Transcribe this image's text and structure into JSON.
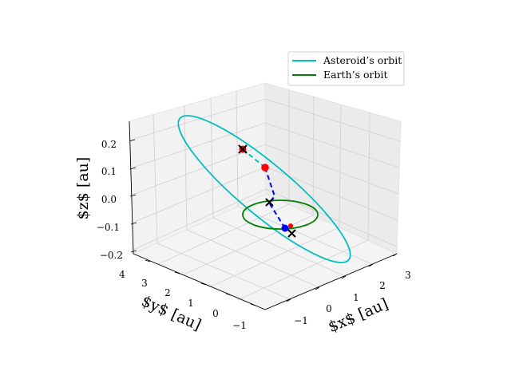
{
  "chart_data": {
    "type": "line",
    "projection": "3d",
    "title": "",
    "xlabel": "$x$ [au]",
    "ylabel": "$y$ [au]",
    "zlabel": "$z$ [au]",
    "x_ticks": [
      "−1",
      "0",
      "1",
      "2",
      "3"
    ],
    "y_ticks": [
      "−1",
      "0",
      "1",
      "2",
      "3",
      "4"
    ],
    "z_ticks": [
      "−0.2",
      "−0.1",
      "0.0",
      "0.1",
      "0.2"
    ],
    "xlim": [
      -1.5,
      3.2
    ],
    "ylim": [
      -1.5,
      4.2
    ],
    "zlim": [
      -0.2,
      0.27
    ],
    "grid": true,
    "legend_position": "upper-right",
    "series": [
      {
        "name": "Asteroid’s orbit",
        "color": "#00bfbf"
      },
      {
        "name": "Earth’s orbit",
        "color": "#008000"
      }
    ],
    "colors": {
      "asteroid": "#00bfbf",
      "earth": "#008000",
      "marker_red": "#ff0000",
      "marker_blue": "#0000ff",
      "cross": "#000000"
    }
  }
}
